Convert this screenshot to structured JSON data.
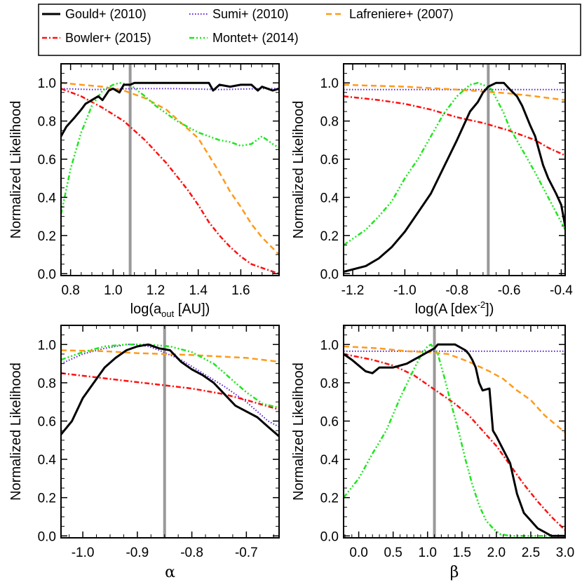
{
  "legend": {
    "entries": [
      {
        "key": "gould",
        "label": "Gould+ (2010)",
        "color": "#000000",
        "dash": "",
        "width": 3
      },
      {
        "key": "sumi",
        "label": "Sumi+ (2010)",
        "color": "#5a1fd6",
        "dash": "1.5,2.5",
        "width": 2
      },
      {
        "key": "lafreniere",
        "label": "Lafreniere+ (2007)",
        "color": "#ff9a1a",
        "dash": "8,5",
        "width": 2.5
      },
      {
        "key": "bowler",
        "label": "Bowler+ (2015)",
        "color": "#ff1010",
        "dash": "7,3,2,3",
        "width": 2.5
      },
      {
        "key": "montet",
        "label": "Montet+ (2014)",
        "color": "#1ee61e",
        "dash": "7,3,2,3,2,3,2,3",
        "width": 2.5
      }
    ]
  },
  "chart_data": [
    {
      "type": "line",
      "panel": "top-left",
      "xlabel": "log(a_out [AU])",
      "xlabel_main": "log(a",
      "xlabel_sub": "out",
      "xlabel_tail": " [AU])",
      "ylabel": "Normalized Likelihood",
      "xlim": [
        0.755,
        1.78
      ],
      "ylim": [
        -0.01,
        1.1
      ],
      "xticks": [
        0.8,
        1.0,
        1.2,
        1.4,
        1.6
      ],
      "xtick_labels": [
        "0.8",
        "1.0",
        "1.2",
        "1.4",
        "1.6"
      ],
      "yticks": [
        0.0,
        0.2,
        0.4,
        0.6,
        0.8,
        1.0
      ],
      "ytick_labels": [
        "0.0",
        "0.2",
        "0.4",
        "0.6",
        "0.8",
        "1.0"
      ],
      "vline": 1.08,
      "series": [
        {
          "name": "Gould+ (2010)",
          "x": [
            0.755,
            0.78,
            0.82,
            0.85,
            0.87,
            0.9,
            0.93,
            0.95,
            0.98,
            1.0,
            1.03,
            1.05,
            1.08,
            1.1,
            1.15,
            1.2,
            1.3,
            1.4,
            1.45,
            1.47,
            1.5,
            1.55,
            1.6,
            1.65,
            1.68,
            1.7,
            1.75,
            1.78
          ],
          "y": [
            0.72,
            0.77,
            0.82,
            0.86,
            0.89,
            0.91,
            0.93,
            0.91,
            0.96,
            0.97,
            0.95,
            0.99,
            0.99,
            1.0,
            1.0,
            1.0,
            1.0,
            1.0,
            1.0,
            0.96,
            0.99,
            0.98,
            0.99,
            0.99,
            0.96,
            0.98,
            0.96,
            0.97
          ]
        },
        {
          "name": "Sumi+ (2010)",
          "x": [
            0.755,
            0.9,
            1.1,
            1.3,
            1.5,
            1.7,
            1.78
          ],
          "y": [
            0.97,
            0.965,
            0.97,
            0.97,
            0.965,
            0.97,
            0.97
          ]
        },
        {
          "name": "Lafreniere+ (2007)",
          "x": [
            0.755,
            0.85,
            0.95,
            1.05,
            1.15,
            1.25,
            1.3,
            1.35,
            1.4,
            1.45,
            1.5,
            1.55,
            1.6,
            1.65,
            1.7,
            1.78
          ],
          "y": [
            1.0,
            0.99,
            0.98,
            0.96,
            0.92,
            0.86,
            0.81,
            0.76,
            0.71,
            0.62,
            0.53,
            0.43,
            0.35,
            0.26,
            0.19,
            0.1
          ]
        },
        {
          "name": "Bowler+ (2015)",
          "x": [
            0.755,
            0.85,
            0.95,
            1.05,
            1.15,
            1.25,
            1.3,
            1.35,
            1.4,
            1.45,
            1.5,
            1.55,
            1.6,
            1.65,
            1.7,
            1.78
          ],
          "y": [
            0.97,
            0.93,
            0.87,
            0.8,
            0.7,
            0.58,
            0.51,
            0.44,
            0.36,
            0.27,
            0.2,
            0.14,
            0.09,
            0.05,
            0.03,
            0.0
          ]
        },
        {
          "name": "Montet+ (2014)",
          "x": [
            0.755,
            0.8,
            0.85,
            0.9,
            0.95,
            1.0,
            1.03,
            1.08,
            1.15,
            1.2,
            1.25,
            1.3,
            1.35,
            1.4,
            1.45,
            1.5,
            1.55,
            1.6,
            1.65,
            1.7,
            1.75,
            1.78
          ],
          "y": [
            0.31,
            0.55,
            0.74,
            0.88,
            0.96,
            0.99,
            1.0,
            0.99,
            0.93,
            0.88,
            0.84,
            0.8,
            0.77,
            0.74,
            0.72,
            0.7,
            0.69,
            0.67,
            0.68,
            0.72,
            0.68,
            0.66
          ]
        }
      ]
    },
    {
      "type": "line",
      "panel": "top-right",
      "xlabel": "log(A [dex^-2])",
      "xlabel_main": "log(A [dex",
      "xlabel_sup": "-2",
      "xlabel_tail": "])",
      "ylabel": "Normalized Likelihood",
      "xlim": [
        -1.235,
        -0.385
      ],
      "ylim": [
        -0.01,
        1.1
      ],
      "xticks": [
        -1.2,
        -1.0,
        -0.8,
        -0.6,
        -0.4
      ],
      "xtick_labels": [
        "-1.2",
        "-1.0",
        "-0.8",
        "-0.6",
        "-0.4"
      ],
      "yticks": [
        0.0,
        0.2,
        0.4,
        0.6,
        0.8,
        1.0
      ],
      "ytick_labels": [
        "0.0",
        "0.2",
        "0.4",
        "0.6",
        "0.8",
        "1.0"
      ],
      "vline": -0.68,
      "series": [
        {
          "name": "Gould+ (2010)",
          "x": [
            -1.235,
            -1.15,
            -1.1,
            -1.05,
            -1.0,
            -0.95,
            -0.9,
            -0.85,
            -0.8,
            -0.75,
            -0.72,
            -0.7,
            -0.68,
            -0.65,
            -0.62,
            -0.6,
            -0.57,
            -0.55,
            -0.52,
            -0.5,
            -0.47,
            -0.45,
            -0.42,
            -0.4,
            -0.385
          ],
          "y": [
            0.01,
            0.04,
            0.08,
            0.14,
            0.22,
            0.32,
            0.42,
            0.56,
            0.7,
            0.85,
            0.9,
            0.95,
            0.98,
            1.0,
            1.0,
            0.97,
            0.93,
            0.88,
            0.78,
            0.72,
            0.57,
            0.5,
            0.42,
            0.36,
            0.25
          ]
        },
        {
          "name": "Sumi+ (2010)",
          "x": [
            -1.235,
            -1.0,
            -0.8,
            -0.6,
            -0.385
          ],
          "y": [
            0.965,
            0.965,
            0.965,
            0.965,
            0.965
          ]
        },
        {
          "name": "Lafreniere+ (2007)",
          "x": [
            -1.235,
            -1.0,
            -0.8,
            -0.7,
            -0.6,
            -0.5,
            -0.385
          ],
          "y": [
            0.99,
            0.98,
            0.965,
            0.955,
            0.945,
            0.93,
            0.91
          ]
        },
        {
          "name": "Bowler+ (2015)",
          "x": [
            -1.235,
            -1.1,
            -1.0,
            -0.9,
            -0.8,
            -0.7,
            -0.6,
            -0.5,
            -0.45,
            -0.385
          ],
          "y": [
            0.93,
            0.91,
            0.89,
            0.86,
            0.82,
            0.79,
            0.75,
            0.7,
            0.66,
            0.62
          ]
        },
        {
          "name": "Montet+ (2014)",
          "x": [
            -1.235,
            -1.15,
            -1.1,
            -1.05,
            -1.0,
            -0.95,
            -0.9,
            -0.85,
            -0.8,
            -0.75,
            -0.72,
            -0.7,
            -0.67,
            -0.65,
            -0.62,
            -0.6,
            -0.55,
            -0.5,
            -0.45,
            -0.4,
            -0.385
          ],
          "y": [
            0.15,
            0.23,
            0.3,
            0.38,
            0.5,
            0.6,
            0.72,
            0.84,
            0.93,
            0.99,
            1.0,
            0.99,
            0.97,
            0.92,
            0.84,
            0.77,
            0.65,
            0.53,
            0.4,
            0.27,
            0.23
          ]
        }
      ]
    },
    {
      "type": "line",
      "panel": "bottom-left",
      "xlabel": "α",
      "ylabel": "Normalized Likelihood",
      "xlim": [
        -1.04,
        -0.64
      ],
      "ylim": [
        -0.01,
        1.1
      ],
      "xticks": [
        -1.0,
        -0.9,
        -0.8,
        -0.7
      ],
      "xtick_labels": [
        "-1.0",
        "-0.9",
        "-0.8",
        "-0.7"
      ],
      "yticks": [
        0.0,
        0.2,
        0.4,
        0.6,
        0.8,
        1.0
      ],
      "ytick_labels": [
        "0.0",
        "0.2",
        "0.4",
        "0.6",
        "0.8",
        "1.0"
      ],
      "vline": -0.85,
      "series": [
        {
          "name": "Gould+ (2010)",
          "x": [
            -1.04,
            -1.02,
            -1.0,
            -0.98,
            -0.96,
            -0.94,
            -0.92,
            -0.9,
            -0.88,
            -0.86,
            -0.84,
            -0.82,
            -0.8,
            -0.78,
            -0.76,
            -0.74,
            -0.72,
            -0.7,
            -0.68,
            -0.66,
            -0.64
          ],
          "y": [
            0.53,
            0.6,
            0.72,
            0.8,
            0.88,
            0.93,
            0.97,
            0.99,
            1.0,
            0.98,
            0.97,
            0.91,
            0.87,
            0.84,
            0.8,
            0.74,
            0.68,
            0.65,
            0.62,
            0.57,
            0.52
          ]
        },
        {
          "name": "Sumi+ (2010)",
          "x": [
            -1.04,
            -1.0,
            -0.96,
            -0.92,
            -0.9,
            -0.88,
            -0.86,
            -0.82,
            -0.78,
            -0.74,
            -0.7,
            -0.66,
            -0.64
          ],
          "y": [
            0.9,
            0.95,
            0.98,
            1.0,
            1.0,
            0.99,
            0.97,
            0.92,
            0.85,
            0.78,
            0.7,
            0.6,
            0.57
          ]
        },
        {
          "name": "Lafreniere+ (2007)",
          "x": [
            -1.04,
            -0.96,
            -0.9,
            -0.85,
            -0.8,
            -0.7,
            -0.64
          ],
          "y": [
            0.97,
            0.965,
            0.955,
            0.95,
            0.945,
            0.93,
            0.91
          ]
        },
        {
          "name": "Bowler+ (2015)",
          "x": [
            -1.04,
            -0.98,
            -0.92,
            -0.86,
            -0.8,
            -0.74,
            -0.7,
            -0.64
          ],
          "y": [
            0.85,
            0.83,
            0.81,
            0.79,
            0.77,
            0.74,
            0.71,
            0.66
          ]
        },
        {
          "name": "Montet+ (2014)",
          "x": [
            -1.04,
            -1.0,
            -0.96,
            -0.92,
            -0.88,
            -0.84,
            -0.8,
            -0.78,
            -0.76,
            -0.74,
            -0.72,
            -0.7,
            -0.67,
            -0.64
          ],
          "y": [
            0.92,
            0.96,
            0.99,
            1.0,
            1.0,
            0.99,
            0.96,
            0.93,
            0.9,
            0.85,
            0.8,
            0.75,
            0.69,
            0.67
          ]
        }
      ]
    },
    {
      "type": "line",
      "panel": "bottom-right",
      "xlabel": "β",
      "ylabel": "Normalized Likelihood",
      "xlim": [
        -0.22,
        3.0
      ],
      "ylim": [
        -0.01,
        1.1
      ],
      "xticks": [
        0.0,
        0.5,
        1.0,
        1.5,
        2.0,
        2.5,
        3.0
      ],
      "xtick_labels": [
        "0.0",
        "0.5",
        "1.0",
        "1.5",
        "2.0",
        "2.5",
        "3.0"
      ],
      "yticks": [
        0.0,
        0.2,
        0.4,
        0.6,
        0.8,
        1.0
      ],
      "ytick_labels": [
        "0.0",
        "0.2",
        "0.4",
        "0.6",
        "0.8",
        "1.0"
      ],
      "vline": 1.1,
      "series": [
        {
          "name": "Gould+ (2010)",
          "x": [
            -0.22,
            -0.1,
            0.0,
            0.1,
            0.2,
            0.3,
            0.4,
            0.5,
            0.6,
            0.7,
            0.8,
            0.9,
            1.0,
            1.1,
            1.15,
            1.2,
            1.4,
            1.55,
            1.6,
            1.65,
            1.7,
            1.75,
            1.8,
            1.9,
            1.95,
            2.0,
            2.1,
            2.2,
            2.25,
            2.3,
            2.4,
            2.5,
            2.6,
            2.7,
            2.8,
            2.9,
            3.0
          ],
          "y": [
            0.95,
            0.92,
            0.89,
            0.86,
            0.85,
            0.88,
            0.88,
            0.88,
            0.89,
            0.9,
            0.92,
            0.94,
            0.96,
            0.98,
            1.0,
            1.0,
            1.0,
            0.97,
            0.95,
            0.92,
            0.88,
            0.8,
            0.76,
            0.77,
            0.55,
            0.52,
            0.45,
            0.38,
            0.3,
            0.22,
            0.12,
            0.08,
            0.04,
            0.02,
            0.0,
            0.0,
            0.0
          ]
        },
        {
          "name": "Sumi+ (2010)",
          "x": [
            -0.22,
            0.5,
            1.0,
            1.5,
            2.0,
            2.5,
            3.0
          ],
          "y": [
            0.965,
            0.965,
            0.965,
            0.965,
            0.965,
            0.965,
            0.965
          ]
        },
        {
          "name": "Lafreniere+ (2007)",
          "x": [
            -0.22,
            0.3,
            0.7,
            1.0,
            1.3,
            1.6,
            1.9,
            2.1,
            2.3,
            2.5,
            2.7,
            2.9,
            3.0
          ],
          "y": [
            0.99,
            0.98,
            0.965,
            0.96,
            0.95,
            0.91,
            0.86,
            0.82,
            0.76,
            0.71,
            0.63,
            0.57,
            0.54
          ]
        },
        {
          "name": "Bowler+ (2015)",
          "x": [
            -0.22,
            0.2,
            0.5,
            0.8,
            1.0,
            1.2,
            1.4,
            1.6,
            1.8,
            2.0,
            2.2,
            2.4,
            2.6,
            2.8,
            3.0
          ],
          "y": [
            0.95,
            0.92,
            0.89,
            0.84,
            0.79,
            0.74,
            0.69,
            0.63,
            0.55,
            0.47,
            0.37,
            0.27,
            0.18,
            0.1,
            0.03
          ]
        },
        {
          "name": "Montet+ (2014)",
          "x": [
            -0.22,
            0.0,
            0.2,
            0.4,
            0.6,
            0.8,
            0.9,
            1.0,
            1.05,
            1.15,
            1.25,
            1.35,
            1.45,
            1.55,
            1.65,
            1.75,
            1.85,
            1.95,
            2.05,
            2.2,
            2.4,
            3.0
          ],
          "y": [
            0.2,
            0.3,
            0.43,
            0.55,
            0.72,
            0.87,
            0.94,
            0.99,
            1.0,
            0.95,
            0.82,
            0.68,
            0.55,
            0.4,
            0.27,
            0.16,
            0.08,
            0.04,
            0.01,
            0.0,
            0.0,
            0.0
          ]
        }
      ]
    }
  ],
  "panels_geometry": {
    "note_visible": false
  }
}
